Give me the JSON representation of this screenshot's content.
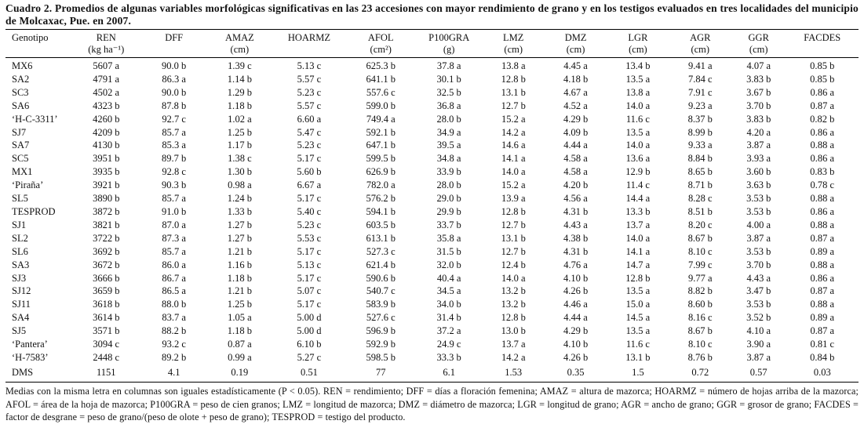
{
  "title": "Cuadro 2. Promedios de algunas variables morfológicas significativas en las 23 accesiones con mayor rendimiento de grano y en los testigos evaluados en tres localidades del municipio de Molcaxac, Pue. en 2007.",
  "table": {
    "columns": [
      {
        "label": "Genotipo",
        "unit": ""
      },
      {
        "label": "REN",
        "unit": "(kg ha⁻¹)"
      },
      {
        "label": "DFF",
        "unit": ""
      },
      {
        "label": "AMAZ",
        "unit": "(cm)"
      },
      {
        "label": "HOARMZ",
        "unit": ""
      },
      {
        "label": "AFOL",
        "unit": "(cm²)"
      },
      {
        "label": "P100GRA",
        "unit": "(g)"
      },
      {
        "label": "LMZ",
        "unit": "(cm)"
      },
      {
        "label": "DMZ",
        "unit": "(cm)"
      },
      {
        "label": "LGR",
        "unit": "(cm)"
      },
      {
        "label": "AGR",
        "unit": "(cm)"
      },
      {
        "label": "GGR",
        "unit": "(cm)"
      },
      {
        "label": "FACDES",
        "unit": ""
      }
    ],
    "rows": [
      [
        "MX6",
        "5607 a",
        "90.0 b",
        "1.39 c",
        "5.13 c",
        "625.3 b",
        "37.8 a",
        "13.8 a",
        "4.45 a",
        "13.4 b",
        "9.41 a",
        "4.07 a",
        "0.85 b"
      ],
      [
        "SA2",
        "4791 a",
        "86.3 a",
        "1.14 b",
        "5.57 c",
        "641.1 b",
        "30.1 b",
        "12.8 b",
        "4.18 b",
        "13.5 a",
        "7.84 c",
        "3.83 b",
        "0.85 b"
      ],
      [
        "SC3",
        "4502 a",
        "90.0 b",
        "1.29 b",
        "5.23 c",
        "557.6 c",
        "32.5 b",
        "13.1 b",
        "4.67 a",
        "13.8 a",
        "7.91 c",
        "3.67 b",
        "0.86 a"
      ],
      [
        "SA6",
        "4323 b",
        "87.8 b",
        "1.18 b",
        "5.57 c",
        "599.0 b",
        "36.8 a",
        "12.7 b",
        "4.52 a",
        "14.0 a",
        "9.23 a",
        "3.70 b",
        "0.87 a"
      ],
      [
        "‘H-C-3311’",
        "4260 b",
        "92.7 c",
        "1.02 a",
        "6.60 a",
        "749.4 a",
        "28.0 b",
        "15.2 a",
        "4.29 b",
        "11.6 c",
        "8.37 b",
        "3.83 b",
        "0.82 b"
      ],
      [
        "SJ7",
        "4209 b",
        "85.7 a",
        "1.25 b",
        "5.47 c",
        "592.1 b",
        "34.9 a",
        "14.2 a",
        "4.09 b",
        "13.5 a",
        "8.99 b",
        "4.20 a",
        "0.86 a"
      ],
      [
        "SA7",
        "4130 b",
        "85.3 a",
        "1.17 b",
        "5.23 c",
        "647.1 b",
        "39.5 a",
        "14.6 a",
        "4.44 a",
        "14.0 a",
        "9.33 a",
        "3.87 a",
        "0.88 a"
      ],
      [
        "SC5",
        "3951 b",
        "89.7 b",
        "1.38 c",
        "5.17 c",
        "599.5 b",
        "34.8 a",
        "14.1 a",
        "4.58 a",
        "13.6 a",
        "8.84 b",
        "3.93 a",
        "0.86 a"
      ],
      [
        "MX1",
        "3935 b",
        "92.8 c",
        "1.30 b",
        "5.60 b",
        "626.9 b",
        "33.9 b",
        "14.0 a",
        "4.58 a",
        "12.9 b",
        "8.65 b",
        "3.60 b",
        "0.83 b"
      ],
      [
        "‘Piraña’",
        "3921 b",
        "90.3 b",
        "0.98 a",
        "6.67 a",
        "782.0 a",
        "28.0 b",
        "15.2 a",
        "4.20 b",
        "11.4 c",
        "8.71 b",
        "3.63 b",
        "0.78 c"
      ],
      [
        "SL5",
        "3890 b",
        "85.7 a",
        "1.24 b",
        "5.17 c",
        "576.2 b",
        "29.0 b",
        "13.9 a",
        "4.56 a",
        "14.4 a",
        "8.28 c",
        "3.53 b",
        "0.88 a"
      ],
      [
        "TESPROD",
        "3872 b",
        "91.0 b",
        "1.33 b",
        "5.40 c",
        "594.1 b",
        "29.9 b",
        "12.8 b",
        "4.31 b",
        "13.3 b",
        "8.51 b",
        "3.53 b",
        "0.86 a"
      ],
      [
        "SJ1",
        "3821 b",
        "87.0 a",
        "1.27 b",
        "5.23 c",
        "603.5 b",
        "33.7 b",
        "12.7 b",
        "4.43 a",
        "13.7 a",
        "8.20 c",
        "4.00 a",
        "0.88 a"
      ],
      [
        "SL2",
        "3722 b",
        "87.3 a",
        "1.27 b",
        "5.53 c",
        "613.1 b",
        "35.8 a",
        "13.1 b",
        "4.38 b",
        "14.0 a",
        "8.67 b",
        "3.87 a",
        "0.87 a"
      ],
      [
        "SL6",
        "3692 b",
        "85.7 a",
        "1.21 b",
        "5.17 c",
        "527.3 c",
        "31.5 b",
        "12.7 b",
        "4.31 b",
        "14.1 a",
        "8.10 c",
        "3.53 b",
        "0.89 a"
      ],
      [
        "SA3",
        "3672 b",
        "86.0 a",
        "1.16 b",
        "5.13 c",
        "621.4 b",
        "32.0 b",
        "12.4 b",
        "4.76 a",
        "14.7 a",
        "7.99 c",
        "3.70 b",
        "0.88 a"
      ],
      [
        "SJ3",
        "3666 b",
        "86.7 a",
        "1.18 b",
        "5.17 c",
        "590.6 b",
        "40.4 a",
        "14.0 a",
        "4.10 b",
        "12.8 b",
        "9.77 a",
        "4.43 a",
        "0.86 a"
      ],
      [
        "SJ12",
        "3659 b",
        "86.5 a",
        "1.21 b",
        "5.07 c",
        "540.7 c",
        "34.5 a",
        "13.2 b",
        "4.26 b",
        "13.5 a",
        "8.82 b",
        "3.47 b",
        "0.87 a"
      ],
      [
        "SJ11",
        "3618 b",
        "88.0 b",
        "1.25 b",
        "5.17 c",
        "583.9 b",
        "34.0 b",
        "13.2 b",
        "4.46 a",
        "15.0 a",
        "8.60 b",
        "3.53 b",
        "0.88 a"
      ],
      [
        "SA4",
        "3614 b",
        "83.7 a",
        "1.05 a",
        "5.00 d",
        "527.6 c",
        "31.4 b",
        "12.8 b",
        "4.44 a",
        "14.5 a",
        "8.16 c",
        "3.52 b",
        "0.89 a"
      ],
      [
        "SJ5",
        "3571 b",
        "88.2 b",
        "1.18 b",
        "5.00 d",
        "596.9 b",
        "37.2 a",
        "13.0 b",
        "4.29 b",
        "13.5 a",
        "8.67 b",
        "4.10 a",
        "0.87 a"
      ],
      [
        "‘Pantera’",
        "3094 c",
        "93.2 c",
        "0.87 a",
        "6.10 b",
        "592.9 b",
        "24.9 c",
        "13.7 a",
        "4.10 b",
        "11.6 c",
        "8.10 c",
        "3.90 a",
        "0.81 c"
      ],
      [
        "‘H-7583’",
        "2448 c",
        "89.2 b",
        "0.99 a",
        "5.27 c",
        "598.5 b",
        "33.3 b",
        "14.2 a",
        "4.26 b",
        "13.1 b",
        "8.76 b",
        "3.87 a",
        "0.84 b"
      ]
    ],
    "dms": [
      "DMS",
      "1151",
      "4.1",
      "0.19",
      "0.51",
      "77",
      "6.1",
      "1.53",
      "0.35",
      "1.5",
      "0.72",
      "0.57",
      "0.03"
    ]
  },
  "footnote": "Medias con la misma letra en columnas son iguales estadísticamente (P < 0.05). REN = rendimiento; DFF = días a floración femenina; AMAZ = altura de mazorca; HOARMZ = número de hojas arriba de la mazorca; AFOL = área de la hoja de mazorca; P100GRA = peso de cien granos; LMZ = longitud de mazorca; DMZ = diámetro de mazorca; LGR = longitud de grano; AGR = ancho de grano; GGR = grosor de grano; FACDES = factor de desgrane = peso de grano/(peso de olote + peso de grano); TESPROD = testigo del producto."
}
